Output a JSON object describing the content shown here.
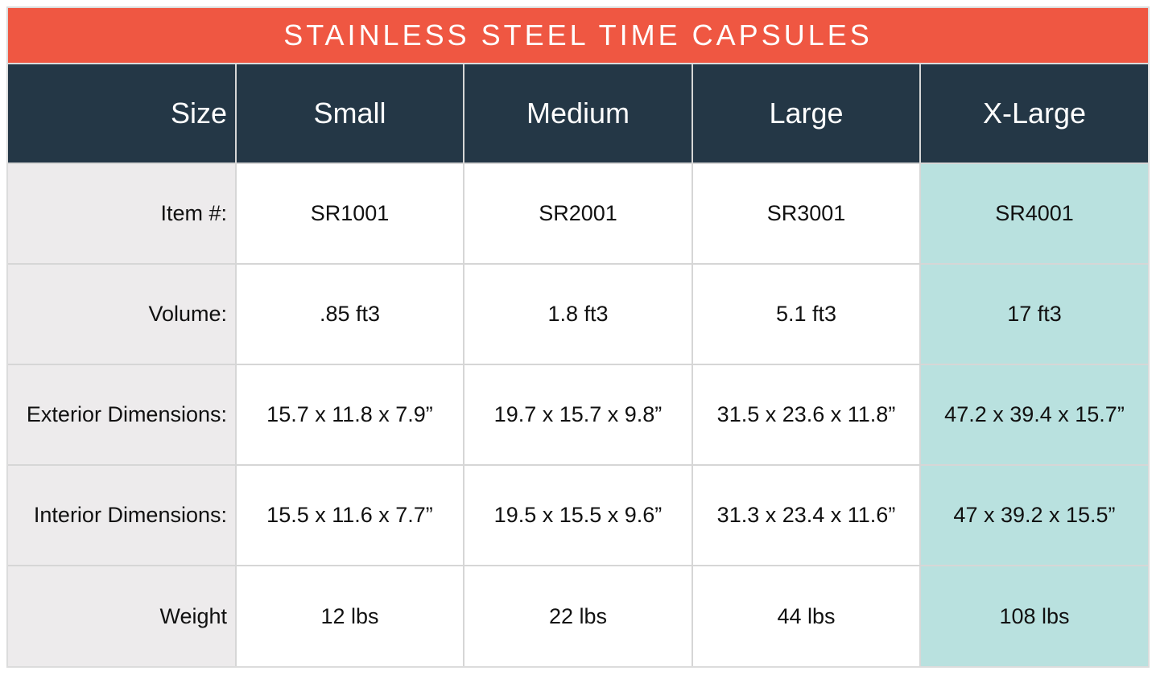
{
  "chart_data": {
    "type": "table",
    "title": "STAINLESS STEEL TIME CAPSULES",
    "header_label": "Size",
    "columns": [
      "Small",
      "Medium",
      "Large",
      "X-Large"
    ],
    "rows": [
      {
        "label": "Item #:",
        "values": [
          "SR1001",
          "SR2001",
          "SR3001",
          "SR4001"
        ]
      },
      {
        "label": "Volume:",
        "values": [
          ".85 ft3",
          "1.8 ft3",
          "5.1 ft3",
          "17 ft3"
        ]
      },
      {
        "label": "Exterior Dimensions:",
        "values": [
          "15.7 x 11.8 x 7.9”",
          "19.7 x 15.7 x 9.8”",
          "31.5 x 23.6 x 11.8”",
          "47.2 x 39.4 x 15.7”"
        ]
      },
      {
        "label": "Interior Dimensions:",
        "values": [
          "15.5 x 11.6 x 7.7”",
          "19.5 x 15.5 x 9.6”",
          "31.3 x 23.4 x 11.6”",
          "47 x 39.2 x 15.5”"
        ]
      },
      {
        "label": "Weight",
        "values": [
          "12 lbs",
          "22 lbs",
          "44 lbs",
          "108 lbs"
        ]
      }
    ],
    "highlighted_column": "X-Large"
  },
  "colors": {
    "title_bg": "#ef5742",
    "header_bg": "#243746",
    "label_bg": "#edebec",
    "highlight_bg": "#b9e1df",
    "cell_bg": "#ffffff"
  }
}
